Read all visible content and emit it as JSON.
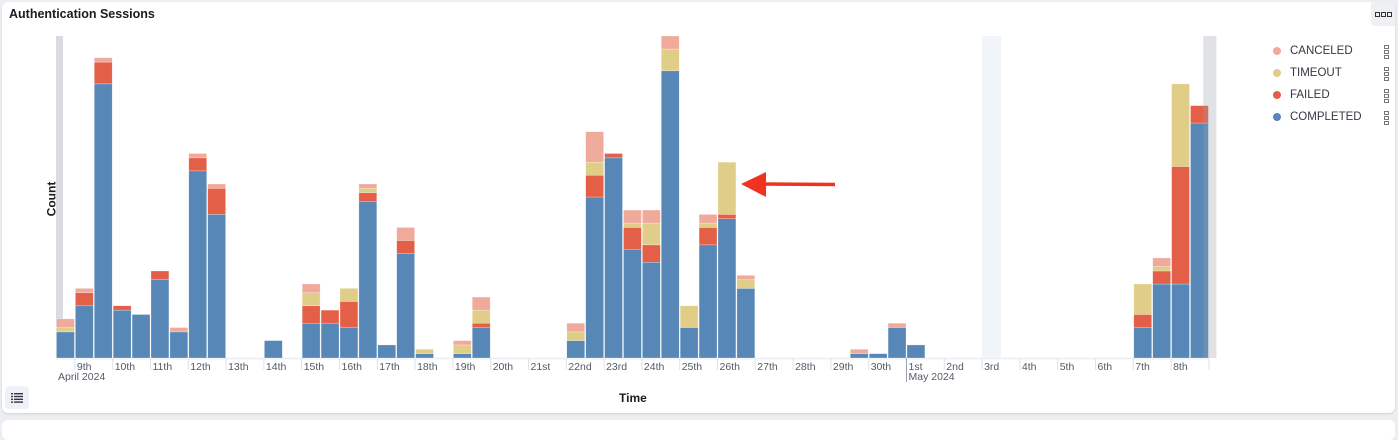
{
  "panel": {
    "title": "Authentication Sessions",
    "menu_icon": "options-icon",
    "list_icon": "list-icon"
  },
  "colors": {
    "COMPLETED": "#5787b6",
    "FAILED": "#e45f47",
    "TIMEOUT": "#e0cd87",
    "CANCELED": "#f0aa9c",
    "annotation_arrow": "#f0331f"
  },
  "legend": [
    {
      "label": "CANCELED",
      "color": "#f0aa9c"
    },
    {
      "label": "TIMEOUT",
      "color": "#e0cd87"
    },
    {
      "label": "FAILED",
      "color": "#e45f47"
    },
    {
      "label": "COMPLETED",
      "color": "#5787b6"
    }
  ],
  "chart_data": {
    "type": "bar",
    "stacked": true,
    "title": "Authentication Sessions",
    "xlabel": "Time",
    "ylabel": "Count",
    "bin": "12 hours",
    "x_start": "2024-04-08 12:00",
    "x_end": "2024-05-09 00:00",
    "ylim": [
      0,
      74
    ],
    "y_ticks_shown": false,
    "grid": false,
    "legend_position": "right",
    "x_tick_labels": [
      "9th",
      "10th",
      "11th",
      "12th",
      "13th",
      "14th",
      "15th",
      "16th",
      "17th",
      "18th",
      "19th",
      "20th",
      "21st",
      "22nd",
      "23rd",
      "24th",
      "25th",
      "26th",
      "27th",
      "28th",
      "29th",
      "30th",
      "1st",
      "2nd",
      "3rd",
      "4th",
      "5th",
      "6th",
      "7th",
      "8th"
    ],
    "x_tick_dates": [
      "2024-04-09",
      "2024-04-10",
      "2024-04-11",
      "2024-04-12",
      "2024-04-13",
      "2024-04-14",
      "2024-04-15",
      "2024-04-16",
      "2024-04-17",
      "2024-04-18",
      "2024-04-19",
      "2024-04-20",
      "2024-04-21",
      "2024-04-22",
      "2024-04-23",
      "2024-04-24",
      "2024-04-25",
      "2024-04-26",
      "2024-04-27",
      "2024-04-28",
      "2024-04-29",
      "2024-04-30",
      "2024-05-01",
      "2024-05-02",
      "2024-05-03",
      "2024-05-04",
      "2024-05-05",
      "2024-05-06",
      "2024-05-07",
      "2024-05-08"
    ],
    "month_labels": [
      {
        "date": "2024-04-09",
        "label": "April 2024"
      },
      {
        "date": "2024-05-01",
        "label": "May 2024"
      }
    ],
    "series": [
      {
        "name": "COMPLETED",
        "values": [
          6,
          12,
          63,
          11,
          10,
          18,
          6,
          43,
          33,
          0,
          0,
          4,
          0,
          8,
          8,
          7,
          36,
          3,
          24,
          1,
          0,
          1,
          7,
          0,
          0,
          0,
          0,
          4,
          37,
          46,
          25,
          22,
          66,
          7,
          26,
          32,
          16,
          0,
          0,
          0,
          0,
          0,
          1,
          1,
          7,
          3,
          0,
          0,
          0,
          0,
          0,
          0,
          0,
          0,
          0,
          0,
          0,
          7,
          17,
          17,
          54
        ]
      },
      {
        "name": "FAILED",
        "values": [
          0,
          3,
          5,
          1,
          0,
          2,
          0,
          3,
          6,
          0,
          0,
          0,
          0,
          4,
          3,
          6,
          2,
          0,
          3,
          0,
          0,
          0,
          1,
          0,
          0,
          0,
          0,
          0,
          5,
          1,
          5,
          4,
          0,
          0,
          4,
          1,
          0,
          0,
          0,
          0,
          0,
          0,
          0,
          0,
          0,
          0,
          0,
          0,
          0,
          0,
          0,
          0,
          0,
          0,
          0,
          0,
          0,
          3,
          3,
          27,
          4
        ]
      },
      {
        "name": "TIMEOUT",
        "values": [
          1,
          0,
          0,
          0,
          0,
          0,
          0,
          0,
          0,
          0,
          0,
          0,
          0,
          3,
          0,
          3,
          1,
          0,
          0,
          1,
          0,
          2,
          3,
          0,
          0,
          0,
          0,
          2,
          3,
          0,
          1,
          5,
          5,
          5,
          1,
          12,
          2,
          0,
          0,
          0,
          0,
          0,
          0,
          0,
          0,
          0,
          0,
          0,
          0,
          0,
          0,
          0,
          0,
          0,
          0,
          0,
          0,
          7,
          1,
          19,
          0
        ]
      },
      {
        "name": "CANCELED",
        "values": [
          2,
          1,
          1,
          0,
          0,
          0,
          1,
          1,
          1,
          0,
          0,
          0,
          0,
          2,
          0,
          0,
          1,
          0,
          3,
          0,
          0,
          1,
          3,
          0,
          0,
          0,
          0,
          2,
          7,
          0,
          3,
          3,
          3,
          0,
          2,
          0,
          1,
          0,
          0,
          0,
          0,
          0,
          1,
          0,
          1,
          0,
          0,
          0,
          0,
          0,
          0,
          0,
          0,
          0,
          0,
          0,
          0,
          0,
          2,
          0,
          0
        ]
      }
    ]
  }
}
